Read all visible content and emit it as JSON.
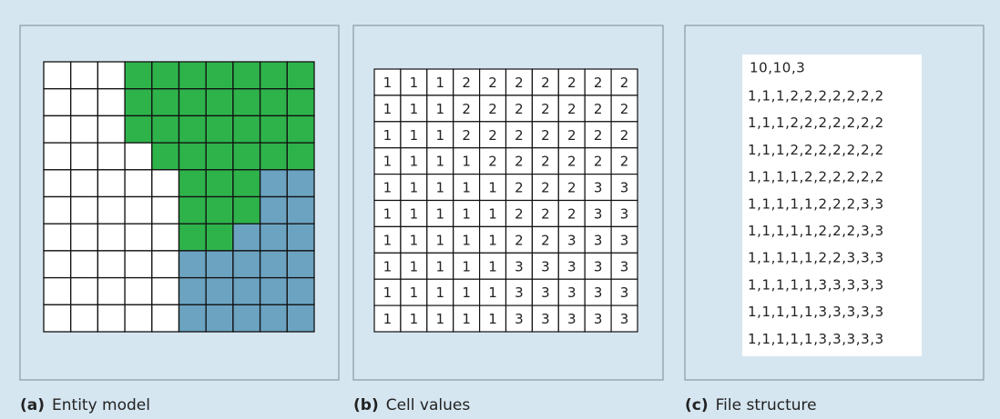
{
  "panels": [
    {
      "label": "(a)",
      "caption": "Entity model"
    },
    {
      "label": "(b)",
      "caption": "Cell values"
    },
    {
      "label": "(c)",
      "caption": "File structure"
    }
  ],
  "grid": [
    [
      1,
      1,
      1,
      2,
      2,
      2,
      2,
      2,
      2,
      2
    ],
    [
      1,
      1,
      1,
      2,
      2,
      2,
      2,
      2,
      2,
      2
    ],
    [
      1,
      1,
      1,
      2,
      2,
      2,
      2,
      2,
      2,
      2
    ],
    [
      1,
      1,
      1,
      1,
      2,
      2,
      2,
      2,
      2,
      2
    ],
    [
      1,
      1,
      1,
      1,
      1,
      2,
      2,
      2,
      3,
      3
    ],
    [
      1,
      1,
      1,
      1,
      1,
      2,
      2,
      2,
      3,
      3
    ],
    [
      1,
      1,
      1,
      1,
      1,
      2,
      2,
      3,
      3,
      3
    ],
    [
      1,
      1,
      1,
      1,
      1,
      3,
      3,
      3,
      3,
      3
    ],
    [
      1,
      1,
      1,
      1,
      1,
      3,
      3,
      3,
      3,
      3
    ],
    [
      1,
      1,
      1,
      1,
      1,
      3,
      3,
      3,
      3,
      3
    ]
  ],
  "entity_colors": {
    "1": "#ffffff",
    "2": "#2eb34b",
    "3": "#6ba3c1"
  },
  "file": {
    "header": "10,10,3",
    "lines": [
      "1,1,1,2,2,2,2,2,2,2",
      "1,1,1,2,2,2,2,2,2,2",
      "1,1,1,2,2,2,2,2,2,2",
      "1,1,1,1,2,2,2,2,2,2",
      "1,1,1,1,1,2,2,2,3,3",
      "1,1,1,1,1,2,2,2,3,3",
      "1,1,1,1,1,2,2,3,3,3",
      "1,1,1,1,1,3,3,3,3,3",
      "1,1,1,1,1,3,3,3,3,3",
      "1,1,1,1,1,3,3,3,3,3"
    ]
  }
}
